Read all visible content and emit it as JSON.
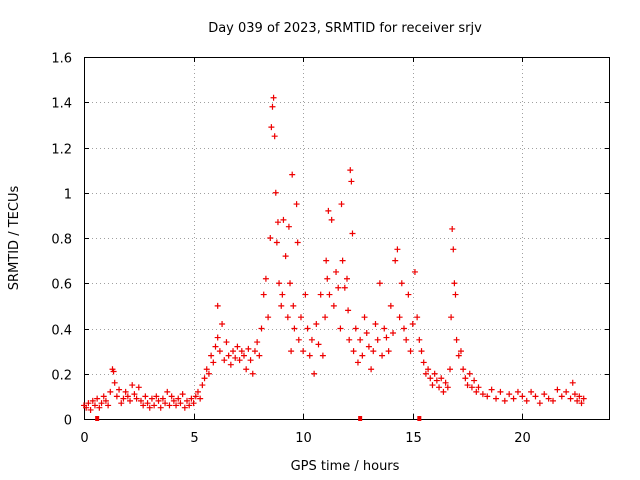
{
  "chart_data": {
    "type": "scatter",
    "title": "Day 039 of 2023, SRMTID for receiver srjv",
    "xlabel": "GPS time / hours",
    "ylabel": "SRMTID / TECUs",
    "xlim": [
      0,
      24
    ],
    "ylim": [
      0,
      1.6
    ],
    "xticks": [
      0,
      5,
      10,
      15,
      20
    ],
    "xtick_labels": [
      "0",
      "5",
      "10",
      "15",
      "20"
    ],
    "yticks": [
      0,
      0.2,
      0.4,
      0.6,
      0.8,
      1.0,
      1.2,
      1.4,
      1.6
    ],
    "ytick_labels": [
      "0",
      "0.2",
      "0.4",
      "0.6",
      "0.8",
      "1",
      "1.2",
      "1.4",
      "1.6"
    ],
    "grid": true,
    "marker": "+",
    "color": "#ee0000",
    "series": [
      {
        "name": "SRMTID",
        "points": [
          [
            0.0,
            0.06
          ],
          [
            0.1,
            0.05
          ],
          [
            0.2,
            0.07
          ],
          [
            0.3,
            0.04
          ],
          [
            0.4,
            0.08
          ],
          [
            0.5,
            0.06
          ],
          [
            0.6,
            0.09
          ],
          [
            0.7,
            0.05
          ],
          [
            0.8,
            0.07
          ],
          [
            0.9,
            0.1
          ],
          [
            1.0,
            0.08
          ],
          [
            1.1,
            0.06
          ],
          [
            1.2,
            0.12
          ],
          [
            1.3,
            0.22
          ],
          [
            1.35,
            0.21
          ],
          [
            1.4,
            0.16
          ],
          [
            1.5,
            0.1
          ],
          [
            1.6,
            0.13
          ],
          [
            1.7,
            0.07
          ],
          [
            1.8,
            0.09
          ],
          [
            1.9,
            0.12
          ],
          [
            2.0,
            0.1
          ],
          [
            2.1,
            0.08
          ],
          [
            2.2,
            0.15
          ],
          [
            2.3,
            0.11
          ],
          [
            2.4,
            0.09
          ],
          [
            2.5,
            0.14
          ],
          [
            2.6,
            0.08
          ],
          [
            2.7,
            0.06
          ],
          [
            2.8,
            0.1
          ],
          [
            2.9,
            0.07
          ],
          [
            3.0,
            0.05
          ],
          [
            3.1,
            0.09
          ],
          [
            3.2,
            0.06
          ],
          [
            3.3,
            0.1
          ],
          [
            3.4,
            0.08
          ],
          [
            3.5,
            0.05
          ],
          [
            3.6,
            0.09
          ],
          [
            3.7,
            0.07
          ],
          [
            3.8,
            0.12
          ],
          [
            3.9,
            0.06
          ],
          [
            4.0,
            0.1
          ],
          [
            4.1,
            0.08
          ],
          [
            4.2,
            0.06
          ],
          [
            4.3,
            0.09
          ],
          [
            4.4,
            0.07
          ],
          [
            4.5,
            0.11
          ],
          [
            4.6,
            0.05
          ],
          [
            4.7,
            0.08
          ],
          [
            4.8,
            0.06
          ],
          [
            4.9,
            0.09
          ],
          [
            5.0,
            0.07
          ],
          [
            5.1,
            0.1
          ],
          [
            5.2,
            0.12
          ],
          [
            5.3,
            0.09
          ],
          [
            5.4,
            0.15
          ],
          [
            5.5,
            0.18
          ],
          [
            5.6,
            0.22
          ],
          [
            5.7,
            0.2
          ],
          [
            5.8,
            0.28
          ],
          [
            5.9,
            0.25
          ],
          [
            6.0,
            0.32
          ],
          [
            6.1,
            0.36
          ],
          [
            6.1,
            0.5
          ],
          [
            6.2,
            0.3
          ],
          [
            6.3,
            0.42
          ],
          [
            6.4,
            0.26
          ],
          [
            6.5,
            0.34
          ],
          [
            6.6,
            0.28
          ],
          [
            6.7,
            0.24
          ],
          [
            6.8,
            0.3
          ],
          [
            6.9,
            0.27
          ],
          [
            7.0,
            0.32
          ],
          [
            7.1,
            0.26
          ],
          [
            7.2,
            0.3
          ],
          [
            7.3,
            0.28
          ],
          [
            7.4,
            0.22
          ],
          [
            7.5,
            0.31
          ],
          [
            7.6,
            0.26
          ],
          [
            7.7,
            0.2
          ],
          [
            7.8,
            0.3
          ],
          [
            7.9,
            0.34
          ],
          [
            8.0,
            0.28
          ],
          [
            8.1,
            0.4
          ],
          [
            8.2,
            0.55
          ],
          [
            8.3,
            0.62
          ],
          [
            8.4,
            0.45
          ],
          [
            8.5,
            0.8
          ],
          [
            8.55,
            1.29
          ],
          [
            8.6,
            1.38
          ],
          [
            8.65,
            1.42
          ],
          [
            8.7,
            1.25
          ],
          [
            8.75,
            1.0
          ],
          [
            8.8,
            0.78
          ],
          [
            8.85,
            0.87
          ],
          [
            8.9,
            0.6
          ],
          [
            9.0,
            0.5
          ],
          [
            9.05,
            0.55
          ],
          [
            9.1,
            0.88
          ],
          [
            9.2,
            0.72
          ],
          [
            9.3,
            0.45
          ],
          [
            9.35,
            0.85
          ],
          [
            9.4,
            0.6
          ],
          [
            9.45,
            0.3
          ],
          [
            9.5,
            1.08
          ],
          [
            9.55,
            0.5
          ],
          [
            9.6,
            0.4
          ],
          [
            9.7,
            0.95
          ],
          [
            9.75,
            0.78
          ],
          [
            9.8,
            0.35
          ],
          [
            9.9,
            0.45
          ],
          [
            10.0,
            0.3
          ],
          [
            10.1,
            0.55
          ],
          [
            10.2,
            0.4
          ],
          [
            10.3,
            0.28
          ],
          [
            10.4,
            0.35
          ],
          [
            10.5,
            0.2
          ],
          [
            10.6,
            0.42
          ],
          [
            10.7,
            0.33
          ],
          [
            10.8,
            0.55
          ],
          [
            10.9,
            0.28
          ],
          [
            11.0,
            0.45
          ],
          [
            11.05,
            0.7
          ],
          [
            11.1,
            0.62
          ],
          [
            11.15,
            0.92
          ],
          [
            11.2,
            0.55
          ],
          [
            11.3,
            0.88
          ],
          [
            11.4,
            0.5
          ],
          [
            11.5,
            0.65
          ],
          [
            11.6,
            0.58
          ],
          [
            11.7,
            0.4
          ],
          [
            11.75,
            0.95
          ],
          [
            11.8,
            0.7
          ],
          [
            11.9,
            0.58
          ],
          [
            12.0,
            0.62
          ],
          [
            12.05,
            0.48
          ],
          [
            12.1,
            0.35
          ],
          [
            12.15,
            1.1
          ],
          [
            12.2,
            1.05
          ],
          [
            12.25,
            0.82
          ],
          [
            12.3,
            0.3
          ],
          [
            12.4,
            0.4
          ],
          [
            12.5,
            0.25
          ],
          [
            12.6,
            0.35
          ],
          [
            12.7,
            0.28
          ],
          [
            12.8,
            0.45
          ],
          [
            12.9,
            0.38
          ],
          [
            13.0,
            0.32
          ],
          [
            13.1,
            0.22
          ],
          [
            13.2,
            0.3
          ],
          [
            13.3,
            0.42
          ],
          [
            13.4,
            0.35
          ],
          [
            13.5,
            0.6
          ],
          [
            13.6,
            0.28
          ],
          [
            13.7,
            0.4
          ],
          [
            13.8,
            0.36
          ],
          [
            13.9,
            0.3
          ],
          [
            14.0,
            0.5
          ],
          [
            14.1,
            0.38
          ],
          [
            14.2,
            0.7
          ],
          [
            14.3,
            0.75
          ],
          [
            14.4,
            0.45
          ],
          [
            14.5,
            0.6
          ],
          [
            14.6,
            0.4
          ],
          [
            14.7,
            0.35
          ],
          [
            14.8,
            0.55
          ],
          [
            14.9,
            0.3
          ],
          [
            15.0,
            0.42
          ],
          [
            15.1,
            0.65
          ],
          [
            15.2,
            0.45
          ],
          [
            15.3,
            0.35
          ],
          [
            15.4,
            0.3
          ],
          [
            15.5,
            0.25
          ],
          [
            15.6,
            0.2
          ],
          [
            15.7,
            0.22
          ],
          [
            15.8,
            0.18
          ],
          [
            15.9,
            0.15
          ],
          [
            16.0,
            0.2
          ],
          [
            16.1,
            0.17
          ],
          [
            16.2,
            0.14
          ],
          [
            16.3,
            0.18
          ],
          [
            16.4,
            0.12
          ],
          [
            16.5,
            0.16
          ],
          [
            16.6,
            0.14
          ],
          [
            16.7,
            0.22
          ],
          [
            16.75,
            0.45
          ],
          [
            16.8,
            0.84
          ],
          [
            16.85,
            0.75
          ],
          [
            16.9,
            0.6
          ],
          [
            16.95,
            0.55
          ],
          [
            17.0,
            0.35
          ],
          [
            17.1,
            0.28
          ],
          [
            17.2,
            0.3
          ],
          [
            17.3,
            0.22
          ],
          [
            17.4,
            0.18
          ],
          [
            17.5,
            0.15
          ],
          [
            17.6,
            0.2
          ],
          [
            17.7,
            0.14
          ],
          [
            17.8,
            0.17
          ],
          [
            17.9,
            0.12
          ],
          [
            18.0,
            0.14
          ],
          [
            18.2,
            0.11
          ],
          [
            18.4,
            0.1
          ],
          [
            18.6,
            0.13
          ],
          [
            18.8,
            0.09
          ],
          [
            19.0,
            0.12
          ],
          [
            19.2,
            0.08
          ],
          [
            19.4,
            0.11
          ],
          [
            19.6,
            0.09
          ],
          [
            19.8,
            0.12
          ],
          [
            20.0,
            0.1
          ],
          [
            20.2,
            0.08
          ],
          [
            20.4,
            0.12
          ],
          [
            20.6,
            0.1
          ],
          [
            20.8,
            0.07
          ],
          [
            21.0,
            0.11
          ],
          [
            21.2,
            0.09
          ],
          [
            21.4,
            0.08
          ],
          [
            21.6,
            0.13
          ],
          [
            21.8,
            0.1
          ],
          [
            22.0,
            0.12
          ],
          [
            22.2,
            0.09
          ],
          [
            22.3,
            0.16
          ],
          [
            22.4,
            0.11
          ],
          [
            22.5,
            0.08
          ],
          [
            22.6,
            0.1
          ],
          [
            22.7,
            0.07
          ],
          [
            22.8,
            0.09
          ]
        ]
      }
    ],
    "baseline_markers": [
      [
        0.6,
        0.0
      ],
      [
        12.6,
        0.0
      ],
      [
        15.3,
        0.0
      ]
    ]
  }
}
